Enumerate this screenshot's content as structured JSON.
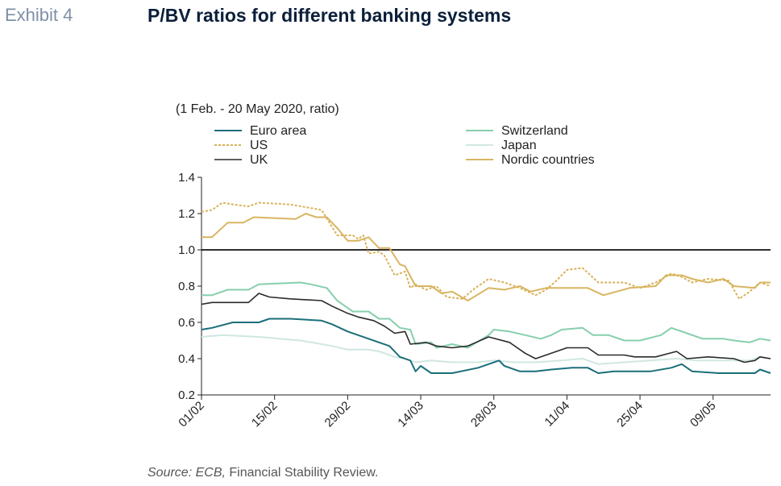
{
  "exhibit_label": "Exhibit 4",
  "title": "P/BV ratios for different banking systems",
  "subtitle": "(1 Feb. - 20 May 2020, ratio)",
  "source": {
    "italic": "Source: ECB,",
    "rest": " Financial Stability Review."
  },
  "chart_data": {
    "type": "line",
    "xlabel": "",
    "ylabel": "",
    "ylim": [
      0.2,
      1.4
    ],
    "yticks": [
      0.2,
      0.4,
      0.6,
      0.8,
      1.0,
      1.2,
      1.4
    ],
    "ytick_labels": [
      "0.2",
      "0.4",
      "0.6",
      "0.8",
      "1.0",
      "1.2",
      "1.4"
    ],
    "x_start": "2020-02-01",
    "x_end": "2020-05-20",
    "xticks": [
      "2020-02-01",
      "2020-02-15",
      "2020-02-29",
      "2020-03-14",
      "2020-03-28",
      "2020-04-11",
      "2020-04-25",
      "2020-05-09"
    ],
    "xtick_labels": [
      "01/02",
      "15/02",
      "29/02",
      "14/03",
      "28/03",
      "11/04",
      "25/04",
      "09/05"
    ],
    "reference_line": 1.0,
    "legend_position": "top",
    "series": [
      {
        "name": "Euro area",
        "color": "#1b6f7a",
        "style": "solid",
        "width": 2,
        "points": [
          [
            "2020-02-01",
            0.56
          ],
          [
            "2020-02-03",
            0.57
          ],
          [
            "2020-02-07",
            0.6
          ],
          [
            "2020-02-12",
            0.6
          ],
          [
            "2020-02-14",
            0.62
          ],
          [
            "2020-02-18",
            0.62
          ],
          [
            "2020-02-24",
            0.61
          ],
          [
            "2020-02-26",
            0.59
          ],
          [
            "2020-02-29",
            0.55
          ],
          [
            "2020-03-02",
            0.53
          ],
          [
            "2020-03-04",
            0.51
          ],
          [
            "2020-03-06",
            0.49
          ],
          [
            "2020-03-08",
            0.47
          ],
          [
            "2020-03-10",
            0.41
          ],
          [
            "2020-03-12",
            0.39
          ],
          [
            "2020-03-13",
            0.33
          ],
          [
            "2020-03-14",
            0.36
          ],
          [
            "2020-03-16",
            0.32
          ],
          [
            "2020-03-20",
            0.32
          ],
          [
            "2020-03-25",
            0.35
          ],
          [
            "2020-03-27",
            0.37
          ],
          [
            "2020-03-29",
            0.39
          ],
          [
            "2020-03-30",
            0.36
          ],
          [
            "2020-04-02",
            0.33
          ],
          [
            "2020-04-05",
            0.33
          ],
          [
            "2020-04-08",
            0.34
          ],
          [
            "2020-04-12",
            0.35
          ],
          [
            "2020-04-15",
            0.35
          ],
          [
            "2020-04-17",
            0.32
          ],
          [
            "2020-04-20",
            0.33
          ],
          [
            "2020-04-27",
            0.33
          ],
          [
            "2020-05-01",
            0.35
          ],
          [
            "2020-05-03",
            0.37
          ],
          [
            "2020-05-05",
            0.33
          ],
          [
            "2020-05-10",
            0.32
          ],
          [
            "2020-05-13",
            0.32
          ],
          [
            "2020-05-17",
            0.32
          ],
          [
            "2020-05-18",
            0.34
          ],
          [
            "2020-05-20",
            0.32
          ]
        ]
      },
      {
        "name": "US",
        "color": "#d9b25a",
        "style": "dotted",
        "width": 2,
        "points": [
          [
            "2020-02-01",
            1.21
          ],
          [
            "2020-02-03",
            1.22
          ],
          [
            "2020-02-05",
            1.26
          ],
          [
            "2020-02-07",
            1.25
          ],
          [
            "2020-02-10",
            1.24
          ],
          [
            "2020-02-12",
            1.26
          ],
          [
            "2020-02-18",
            1.25
          ],
          [
            "2020-02-20",
            1.24
          ],
          [
            "2020-02-24",
            1.22
          ],
          [
            "2020-02-27",
            1.08
          ],
          [
            "2020-03-01",
            1.08
          ],
          [
            "2020-03-02",
            1.06
          ],
          [
            "2020-03-03",
            1.08
          ],
          [
            "2020-03-04",
            0.98
          ],
          [
            "2020-03-06",
            0.99
          ],
          [
            "2020-03-07",
            0.97
          ],
          [
            "2020-03-09",
            0.86
          ],
          [
            "2020-03-11",
            0.88
          ],
          [
            "2020-03-12",
            0.79
          ],
          [
            "2020-03-13",
            0.81
          ],
          [
            "2020-03-15",
            0.78
          ],
          [
            "2020-03-17",
            0.8
          ],
          [
            "2020-03-19",
            0.74
          ],
          [
            "2020-03-22",
            0.73
          ],
          [
            "2020-03-24",
            0.78
          ],
          [
            "2020-03-27",
            0.84
          ],
          [
            "2020-03-30",
            0.82
          ],
          [
            "2020-04-02",
            0.79
          ],
          [
            "2020-04-05",
            0.75
          ],
          [
            "2020-04-07",
            0.78
          ],
          [
            "2020-04-09",
            0.83
          ],
          [
            "2020-04-11",
            0.89
          ],
          [
            "2020-04-14",
            0.9
          ],
          [
            "2020-04-17",
            0.82
          ],
          [
            "2020-04-22",
            0.82
          ],
          [
            "2020-04-25",
            0.79
          ],
          [
            "2020-04-28",
            0.82
          ],
          [
            "2020-05-01",
            0.87
          ],
          [
            "2020-05-03",
            0.85
          ],
          [
            "2020-05-05",
            0.82
          ],
          [
            "2020-05-08",
            0.84
          ],
          [
            "2020-05-12",
            0.83
          ],
          [
            "2020-05-14",
            0.73
          ],
          [
            "2020-05-16",
            0.77
          ],
          [
            "2020-05-18",
            0.82
          ],
          [
            "2020-05-20",
            0.8
          ]
        ]
      },
      {
        "name": "UK",
        "color": "#2a2a2a",
        "style": "solid",
        "width": 1.6,
        "points": [
          [
            "2020-02-01",
            0.7
          ],
          [
            "2020-02-03",
            0.71
          ],
          [
            "2020-02-10",
            0.71
          ],
          [
            "2020-02-12",
            0.76
          ],
          [
            "2020-02-14",
            0.74
          ],
          [
            "2020-02-18",
            0.73
          ],
          [
            "2020-02-24",
            0.72
          ],
          [
            "2020-02-26",
            0.69
          ],
          [
            "2020-02-29",
            0.65
          ],
          [
            "2020-03-02",
            0.63
          ],
          [
            "2020-03-05",
            0.61
          ],
          [
            "2020-03-07",
            0.58
          ],
          [
            "2020-03-09",
            0.54
          ],
          [
            "2020-03-11",
            0.55
          ],
          [
            "2020-03-12",
            0.48
          ],
          [
            "2020-03-15",
            0.49
          ],
          [
            "2020-03-17",
            0.47
          ],
          [
            "2020-03-20",
            0.46
          ],
          [
            "2020-03-23",
            0.47
          ],
          [
            "2020-03-27",
            0.52
          ],
          [
            "2020-03-31",
            0.49
          ],
          [
            "2020-04-03",
            0.43
          ],
          [
            "2020-04-05",
            0.4
          ],
          [
            "2020-04-08",
            0.43
          ],
          [
            "2020-04-11",
            0.46
          ],
          [
            "2020-04-15",
            0.46
          ],
          [
            "2020-04-17",
            0.42
          ],
          [
            "2020-04-22",
            0.42
          ],
          [
            "2020-04-24",
            0.41
          ],
          [
            "2020-04-28",
            0.41
          ],
          [
            "2020-05-02",
            0.44
          ],
          [
            "2020-05-04",
            0.4
          ],
          [
            "2020-05-08",
            0.41
          ],
          [
            "2020-05-13",
            0.4
          ],
          [
            "2020-05-15",
            0.38
          ],
          [
            "2020-05-17",
            0.39
          ],
          [
            "2020-05-18",
            0.41
          ],
          [
            "2020-05-20",
            0.4
          ]
        ]
      },
      {
        "name": "Switzerland",
        "color": "#86cfad",
        "style": "solid",
        "width": 2,
        "points": [
          [
            "2020-02-01",
            0.75
          ],
          [
            "2020-02-03",
            0.75
          ],
          [
            "2020-02-06",
            0.78
          ],
          [
            "2020-02-10",
            0.78
          ],
          [
            "2020-02-12",
            0.81
          ],
          [
            "2020-02-20",
            0.82
          ],
          [
            "2020-02-22",
            0.81
          ],
          [
            "2020-02-25",
            0.79
          ],
          [
            "2020-02-27",
            0.72
          ],
          [
            "2020-03-01",
            0.66
          ],
          [
            "2020-03-04",
            0.66
          ],
          [
            "2020-03-06",
            0.62
          ],
          [
            "2020-03-08",
            0.62
          ],
          [
            "2020-03-10",
            0.57
          ],
          [
            "2020-03-12",
            0.56
          ],
          [
            "2020-03-13",
            0.48
          ],
          [
            "2020-03-16",
            0.49
          ],
          [
            "2020-03-17",
            0.46
          ],
          [
            "2020-03-20",
            0.48
          ],
          [
            "2020-03-23",
            0.46
          ],
          [
            "2020-03-27",
            0.53
          ],
          [
            "2020-03-28",
            0.56
          ],
          [
            "2020-03-31",
            0.55
          ],
          [
            "2020-04-03",
            0.53
          ],
          [
            "2020-04-06",
            0.51
          ],
          [
            "2020-04-08",
            0.53
          ],
          [
            "2020-04-10",
            0.56
          ],
          [
            "2020-04-14",
            0.57
          ],
          [
            "2020-04-16",
            0.53
          ],
          [
            "2020-04-19",
            0.53
          ],
          [
            "2020-04-22",
            0.5
          ],
          [
            "2020-04-25",
            0.5
          ],
          [
            "2020-04-29",
            0.53
          ],
          [
            "2020-05-01",
            0.57
          ],
          [
            "2020-05-04",
            0.54
          ],
          [
            "2020-05-07",
            0.51
          ],
          [
            "2020-05-11",
            0.51
          ],
          [
            "2020-05-13",
            0.5
          ],
          [
            "2020-05-16",
            0.49
          ],
          [
            "2020-05-18",
            0.51
          ],
          [
            "2020-05-20",
            0.5
          ]
        ]
      },
      {
        "name": "Japan",
        "color": "#cfe7e2",
        "style": "solid",
        "width": 2,
        "points": [
          [
            "2020-02-01",
            0.52
          ],
          [
            "2020-02-05",
            0.53
          ],
          [
            "2020-02-12",
            0.52
          ],
          [
            "2020-02-20",
            0.5
          ],
          [
            "2020-02-24",
            0.48
          ],
          [
            "2020-02-26",
            0.47
          ],
          [
            "2020-02-29",
            0.45
          ],
          [
            "2020-03-04",
            0.45
          ],
          [
            "2020-03-06",
            0.44
          ],
          [
            "2020-03-09",
            0.41
          ],
          [
            "2020-03-11",
            0.4
          ],
          [
            "2020-03-13",
            0.38
          ],
          [
            "2020-03-16",
            0.39
          ],
          [
            "2020-03-20",
            0.38
          ],
          [
            "2020-03-25",
            0.38
          ],
          [
            "2020-03-28",
            0.39
          ],
          [
            "2020-04-01",
            0.38
          ],
          [
            "2020-04-05",
            0.38
          ],
          [
            "2020-04-10",
            0.39
          ],
          [
            "2020-04-14",
            0.4
          ],
          [
            "2020-04-17",
            0.37
          ],
          [
            "2020-04-22",
            0.38
          ],
          [
            "2020-04-27",
            0.39
          ],
          [
            "2020-05-02",
            0.4
          ],
          [
            "2020-05-06",
            0.39
          ],
          [
            "2020-05-12",
            0.39
          ],
          [
            "2020-05-16",
            0.39
          ],
          [
            "2020-05-18",
            0.41
          ],
          [
            "2020-05-20",
            0.4
          ]
        ]
      },
      {
        "name": "Nordic countries",
        "color": "#d8b561",
        "style": "solid",
        "width": 2,
        "points": [
          [
            "2020-02-01",
            1.07
          ],
          [
            "2020-02-03",
            1.07
          ],
          [
            "2020-02-06",
            1.15
          ],
          [
            "2020-02-09",
            1.15
          ],
          [
            "2020-02-11",
            1.18
          ],
          [
            "2020-02-19",
            1.17
          ],
          [
            "2020-02-21",
            1.2
          ],
          [
            "2020-02-23",
            1.18
          ],
          [
            "2020-02-25",
            1.18
          ],
          [
            "2020-02-27",
            1.12
          ],
          [
            "2020-02-29",
            1.05
          ],
          [
            "2020-03-02",
            1.05
          ],
          [
            "2020-03-04",
            1.07
          ],
          [
            "2020-03-06",
            1.01
          ],
          [
            "2020-03-08",
            1.01
          ],
          [
            "2020-03-10",
            0.92
          ],
          [
            "2020-03-11",
            0.91
          ],
          [
            "2020-03-13",
            0.8
          ],
          [
            "2020-03-16",
            0.8
          ],
          [
            "2020-03-18",
            0.76
          ],
          [
            "2020-03-20",
            0.77
          ],
          [
            "2020-03-23",
            0.72
          ],
          [
            "2020-03-27",
            0.79
          ],
          [
            "2020-03-30",
            0.78
          ],
          [
            "2020-04-02",
            0.8
          ],
          [
            "2020-04-04",
            0.77
          ],
          [
            "2020-04-07",
            0.79
          ],
          [
            "2020-04-12",
            0.79
          ],
          [
            "2020-04-15",
            0.79
          ],
          [
            "2020-04-18",
            0.75
          ],
          [
            "2020-04-23",
            0.79
          ],
          [
            "2020-04-28",
            0.8
          ],
          [
            "2020-04-30",
            0.86
          ],
          [
            "2020-05-03",
            0.86
          ],
          [
            "2020-05-05",
            0.84
          ],
          [
            "2020-05-08",
            0.82
          ],
          [
            "2020-05-11",
            0.84
          ],
          [
            "2020-05-13",
            0.8
          ],
          [
            "2020-05-17",
            0.79
          ],
          [
            "2020-05-18",
            0.82
          ],
          [
            "2020-05-20",
            0.82
          ]
        ]
      }
    ]
  }
}
